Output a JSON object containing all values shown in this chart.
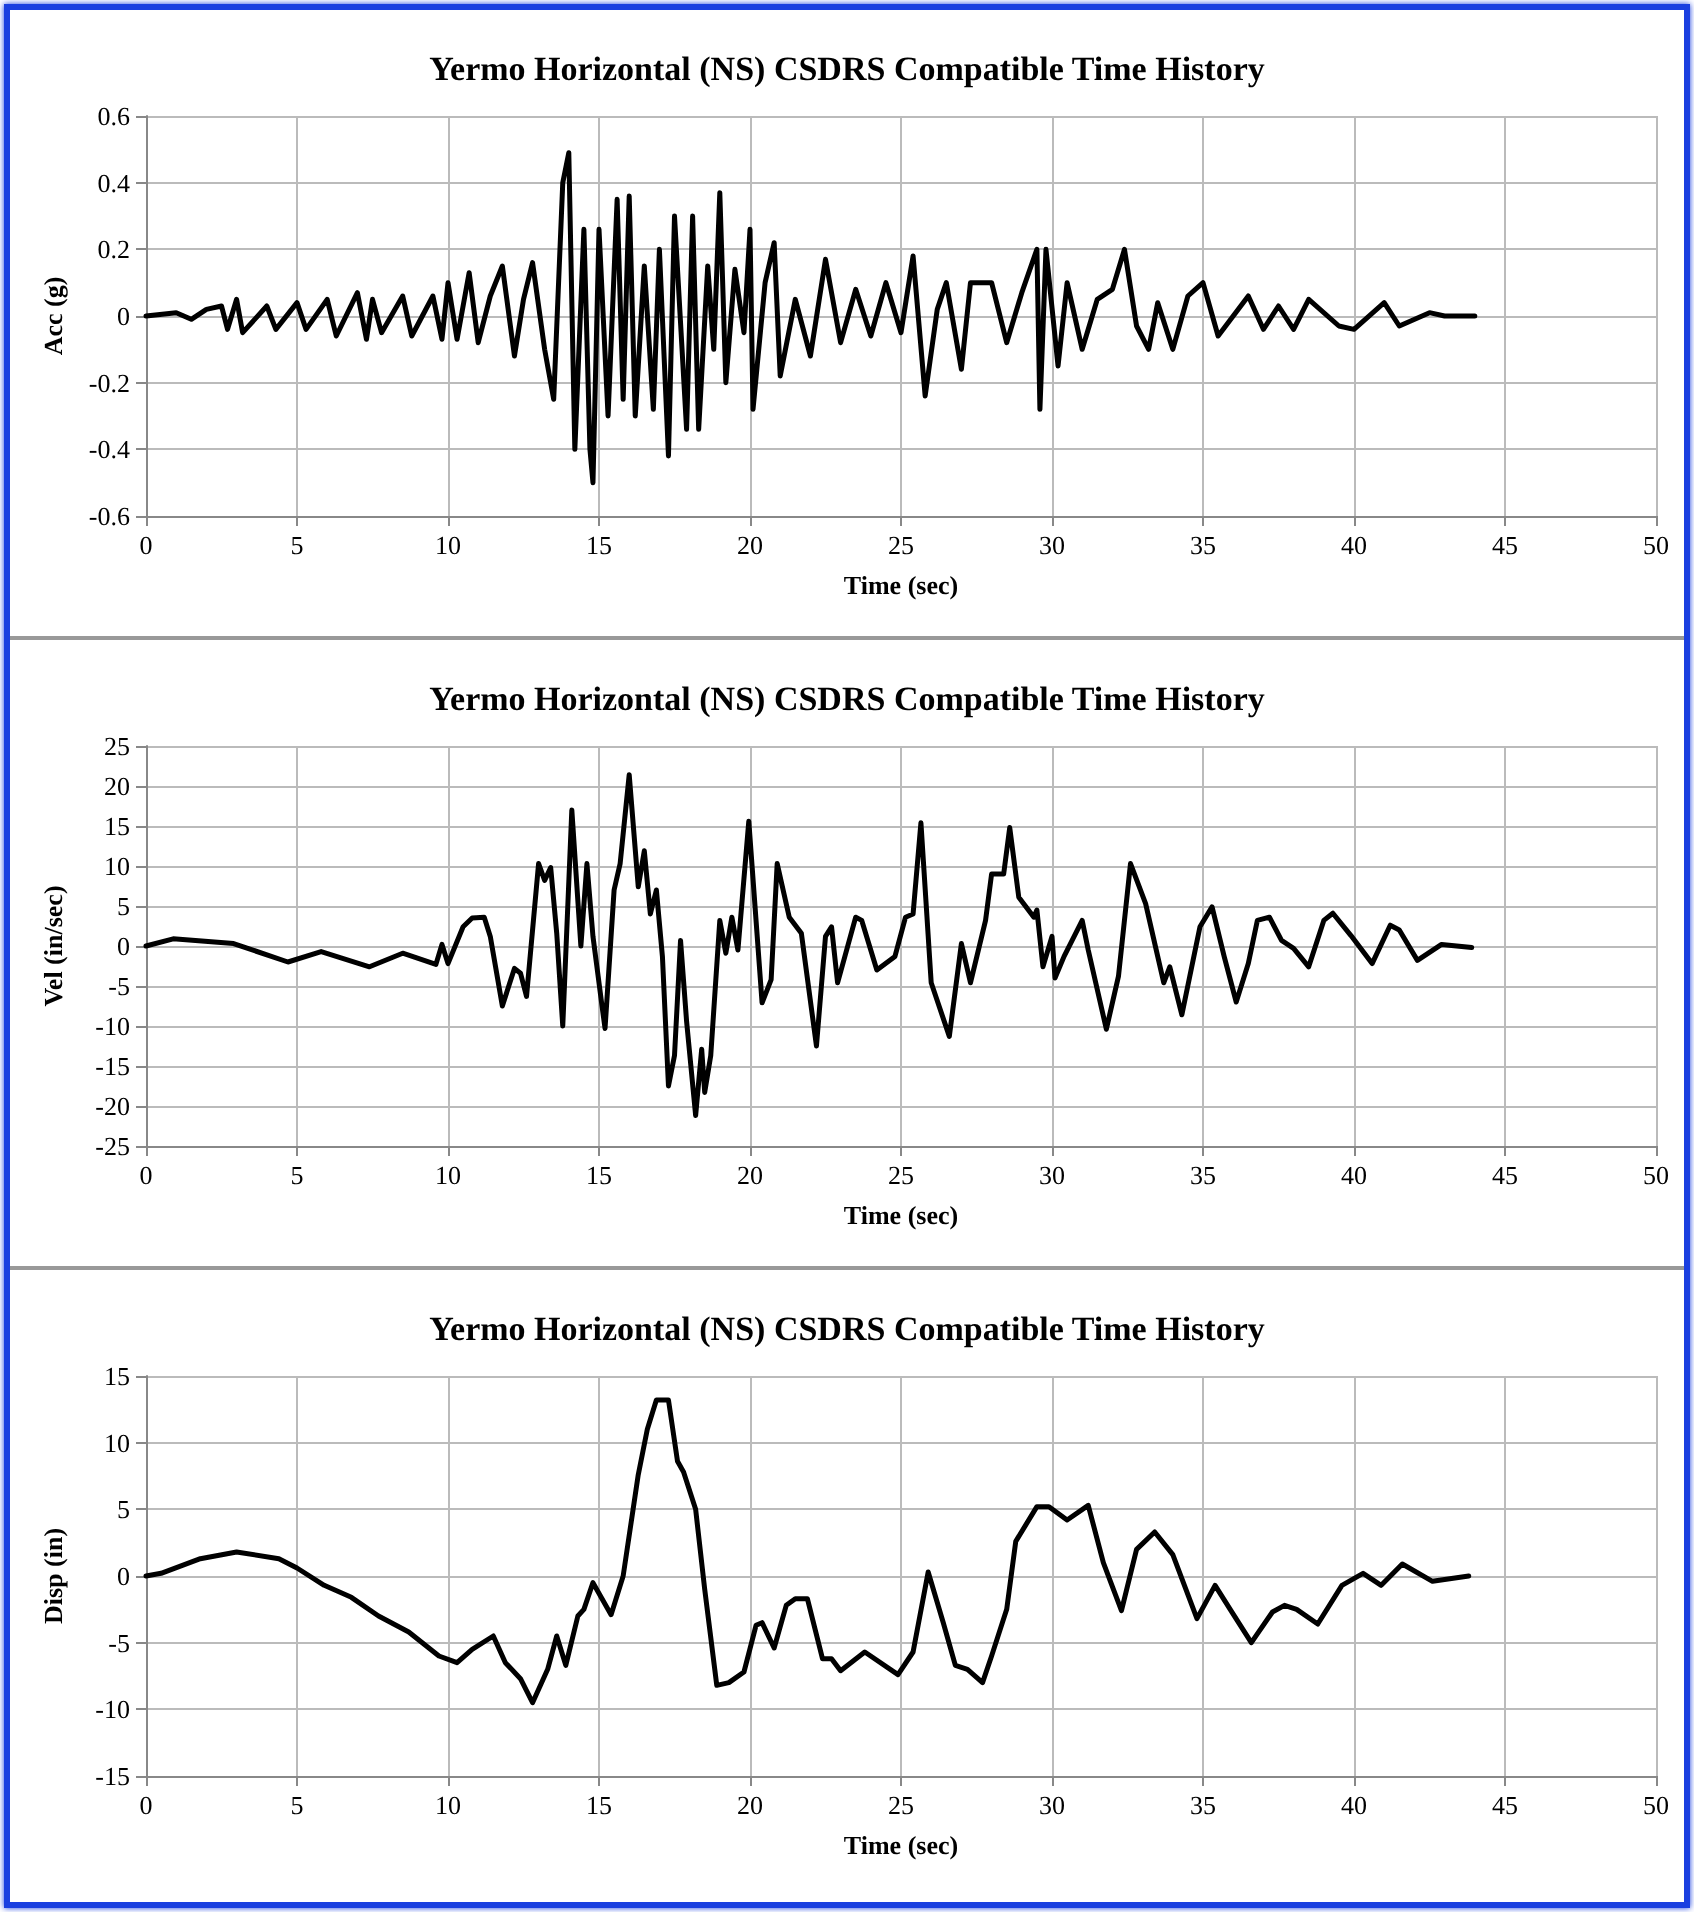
{
  "chart_data": [
    {
      "type": "line",
      "title": "Yermo Horizontal (NS) CSDRS Compatible Time History",
      "xlabel": "Time (sec)",
      "ylabel": "Acc (g)",
      "color": "#000000",
      "marker": "none",
      "line_style": "solid",
      "grid": true,
      "xlim": [
        0,
        50
      ],
      "xticks": [
        0,
        5,
        10,
        15,
        20,
        25,
        30,
        35,
        40,
        45,
        50
      ],
      "ylim": [
        -0.6,
        0.6
      ],
      "yticks": [
        -0.6,
        -0.4,
        -0.2,
        0,
        0.2,
        0.4,
        0.6
      ],
      "x": [
        0,
        1,
        1.5,
        2,
        2.5,
        2.7,
        3,
        3.2,
        4,
        4.3,
        5,
        5.3,
        6,
        6.3,
        7,
        7.3,
        7.5,
        7.8,
        8.5,
        8.8,
        9.5,
        9.8,
        10,
        10.3,
        10.7,
        11,
        11.4,
        11.8,
        12.2,
        12.5,
        12.8,
        13.2,
        13.5,
        13.8,
        14,
        14.2,
        14.5,
        14.7,
        14.8,
        15,
        15.3,
        15.6,
        15.8,
        16,
        16.2,
        16.5,
        16.8,
        17,
        17.3,
        17.5,
        17.9,
        18.1,
        18.3,
        18.6,
        18.8,
        19,
        19.2,
        19.5,
        19.8,
        20,
        20.1,
        20.5,
        20.8,
        21,
        21.5,
        22,
        22.5,
        23,
        23.5,
        24,
        24.5,
        25,
        25.4,
        25.8,
        26.2,
        26.5,
        27,
        27.3,
        28,
        28.5,
        29,
        29.5,
        29.6,
        29.8,
        30.2,
        30.5,
        31,
        31.5,
        32,
        32.4,
        32.8,
        33.2,
        33.5,
        34,
        34.5,
        35,
        35.5,
        36.5,
        37,
        37.5,
        38,
        38.5,
        39.5,
        40,
        41,
        41.5,
        42.5,
        43,
        44
      ],
      "values": [
        0,
        0.01,
        -0.01,
        0.02,
        0.03,
        -0.04,
        0.05,
        -0.05,
        0.03,
        -0.04,
        0.04,
        -0.04,
        0.05,
        -0.06,
        0.07,
        -0.07,
        0.05,
        -0.05,
        0.06,
        -0.06,
        0.06,
        -0.07,
        0.1,
        -0.07,
        0.13,
        -0.08,
        0.06,
        0.15,
        -0.12,
        0.05,
        0.16,
        -0.1,
        -0.25,
        0.4,
        0.49,
        -0.4,
        0.26,
        -0.4,
        -0.5,
        0.26,
        -0.3,
        0.35,
        -0.25,
        0.36,
        -0.3,
        0.15,
        -0.28,
        0.2,
        -0.42,
        0.3,
        -0.34,
        0.3,
        -0.34,
        0.15,
        -0.1,
        0.37,
        -0.2,
        0.14,
        -0.05,
        0.26,
        -0.28,
        0.1,
        0.22,
        -0.18,
        0.05,
        -0.12,
        0.17,
        -0.08,
        0.08,
        -0.06,
        0.1,
        -0.05,
        0.18,
        -0.24,
        0.02,
        0.1,
        -0.16,
        0.1,
        0.1,
        -0.08,
        0.07,
        0.2,
        -0.28,
        0.2,
        -0.15,
        0.1,
        -0.1,
        0.05,
        0.08,
        0.2,
        -0.03,
        -0.1,
        0.04,
        -0.1,
        0.06,
        0.1,
        -0.06,
        0.06,
        -0.04,
        0.03,
        -0.04,
        0.05,
        -0.03,
        -0.04,
        0.04,
        -0.03,
        0.01,
        0,
        0
      ]
    },
    {
      "type": "line",
      "title": "Yermo Horizontal (NS) CSDRS Compatible Time History",
      "xlabel": "Time (sec)",
      "ylabel": "Vel (in/sec)",
      "color": "#000000",
      "marker": "none",
      "line_style": "solid",
      "grid": true,
      "xlim": [
        0,
        50
      ],
      "xticks": [
        0,
        5,
        10,
        15,
        20,
        25,
        30,
        35,
        40,
        45,
        50
      ],
      "ylim": [
        -25,
        25
      ],
      "yticks": [
        -25,
        -20,
        -15,
        -10,
        -5,
        0,
        5,
        10,
        15,
        20,
        25
      ],
      "x": [
        0,
        0.9,
        2.9,
        4.7,
        5.8,
        7.4,
        8.5,
        9.6,
        9.8,
        10,
        10.5,
        10.8,
        11.2,
        11.4,
        11.8,
        12.2,
        12.4,
        12.6,
        13,
        13.2,
        13.4,
        13.6,
        13.8,
        14.1,
        14.4,
        14.6,
        14.8,
        15.1,
        15.2,
        15.5,
        15.7,
        16,
        16.3,
        16.5,
        16.7,
        16.9,
        17.1,
        17.3,
        17.5,
        17.7,
        17.9,
        18.2,
        18.4,
        18.5,
        18.7,
        19,
        19.2,
        19.4,
        19.6,
        19.96,
        20.4,
        20.7,
        20.9,
        21.3,
        21.7,
        22.2,
        22.5,
        22.7,
        22.9,
        23.5,
        23.7,
        24.2,
        24.8,
        25.15,
        25.4,
        25.66,
        26,
        26.6,
        27,
        27.3,
        27.8,
        28,
        28.4,
        28.6,
        28.9,
        29.4,
        29.5,
        29.7,
        30,
        30.1,
        30.4,
        31,
        31.2,
        31.8,
        32.2,
        32.6,
        33.1,
        33.5,
        33.7,
        33.9,
        34.3,
        34.9,
        35.3,
        35.7,
        36.1,
        36.5,
        36.8,
        37.2,
        37.6,
        38,
        38.5,
        39,
        39.3,
        39.9,
        40.6,
        41.2,
        41.5,
        42.1,
        42.9,
        43.9
      ],
      "values": [
        0,
        0.9,
        0.3,
        -2,
        -0.7,
        -2.6,
        -0.9,
        -2.3,
        0.2,
        -2.2,
        2.4,
        3.5,
        3.6,
        1.2,
        -7.5,
        -2.8,
        -3.4,
        -6.3,
        10.3,
        8.2,
        9.8,
        1.6,
        -10,
        17,
        0,
        10.3,
        1.2,
        -7.5,
        -10.3,
        7,
        10.3,
        21.4,
        7.4,
        11.9,
        4,
        7,
        -1.3,
        -17.5,
        -13.7,
        0.7,
        -9.4,
        -21.2,
        -12.9,
        -18.3,
        -13.7,
        3.2,
        -0.9,
        3.6,
        -0.5,
        15.6,
        -7.1,
        -4.2,
        10.3,
        3.6,
        1.6,
        -12.5,
        1.2,
        2.4,
        -4.6,
        3.6,
        3.2,
        -3,
        -1.3,
        3.6,
        4,
        15.4,
        -4.6,
        -11.3,
        0.3,
        -4.6,
        3.2,
        9,
        9,
        14.8,
        6.1,
        3.6,
        4.5,
        -2.6,
        1.2,
        -4,
        -1.3,
        3.2,
        -0.5,
        -10.4,
        -3.8,
        10.3,
        5.3,
        -1.3,
        -4.6,
        -2.6,
        -8.6,
        2.4,
        4.9,
        -1.3,
        -7,
        -2.2,
        3.2,
        3.6,
        0.7,
        -0.3,
        -2.6,
        3.2,
        4.1,
        1.3,
        -2.2,
        2.6,
        2,
        -1.8,
        0.2,
        -0.2
      ]
    },
    {
      "type": "line",
      "title": "Yermo Horizontal (NS) CSDRS Compatible Time History",
      "xlabel": "Time (sec)",
      "ylabel": "Disp (in)",
      "color": "#000000",
      "marker": "none",
      "line_style": "solid",
      "grid": true,
      "xlim": [
        0,
        50
      ],
      "xticks": [
        0,
        5,
        10,
        15,
        20,
        25,
        30,
        35,
        40,
        45,
        50
      ],
      "ylim": [
        -15,
        15
      ],
      "yticks": [
        -15,
        -10,
        -5,
        0,
        5,
        10,
        15
      ],
      "x": [
        0,
        0.5,
        1.8,
        3,
        4.4,
        5,
        5.9,
        6.8,
        7.7,
        8.7,
        9.7,
        10.3,
        10.8,
        11.5,
        11.9,
        12.4,
        12.8,
        13.3,
        13.6,
        13.9,
        14.3,
        14.5,
        14.8,
        15.4,
        15.8,
        16.3,
        16.6,
        16.9,
        17.3,
        17.6,
        17.8,
        18.2,
        18.5,
        18.9,
        19.3,
        19.8,
        20.2,
        20.4,
        20.8,
        21.2,
        21.5,
        21.9,
        22.4,
        22.7,
        23,
        23.8,
        24.9,
        25.4,
        25.9,
        26.4,
        26.8,
        27.2,
        27.7,
        28,
        28.5,
        28.8,
        29.5,
        29.9,
        30.5,
        31.2,
        31.7,
        32.3,
        32.8,
        33.4,
        34,
        34.8,
        35.4,
        35.9,
        36.6,
        37.3,
        37.7,
        38.1,
        38.8,
        39.6,
        40.3,
        40.9,
        41.6,
        42.6,
        43.8
      ],
      "values": [
        0,
        0.2,
        1.3,
        1.8,
        1.3,
        0.6,
        -0.7,
        -1.6,
        -3,
        -4.2,
        -6,
        -6.5,
        -5.5,
        -4.5,
        -6.5,
        -7.7,
        -9.5,
        -7,
        -4.5,
        -6.7,
        -3,
        -2.5,
        -0.5,
        -2.9,
        0,
        7.6,
        11,
        13.2,
        13.2,
        8.6,
        7.8,
        5,
        -1,
        -8.2,
        -8,
        -7.2,
        -3.7,
        -3.5,
        -5.4,
        -2.2,
        -1.7,
        -1.7,
        -6.2,
        -6.2,
        -7.1,
        -5.7,
        -7.4,
        -5.7,
        0.3,
        -3.5,
        -6.7,
        -7,
        -8,
        -6,
        -2.5,
        2.6,
        5.2,
        5.2,
        4.2,
        5.3,
        1,
        -2.6,
        2,
        3.3,
        1.6,
        -3.2,
        -0.7,
        -2.5,
        -5,
        -2.7,
        -2.2,
        -2.5,
        -3.6,
        -0.7,
        0.2,
        -0.7,
        0.9,
        -0.4,
        0
      ]
    }
  ]
}
